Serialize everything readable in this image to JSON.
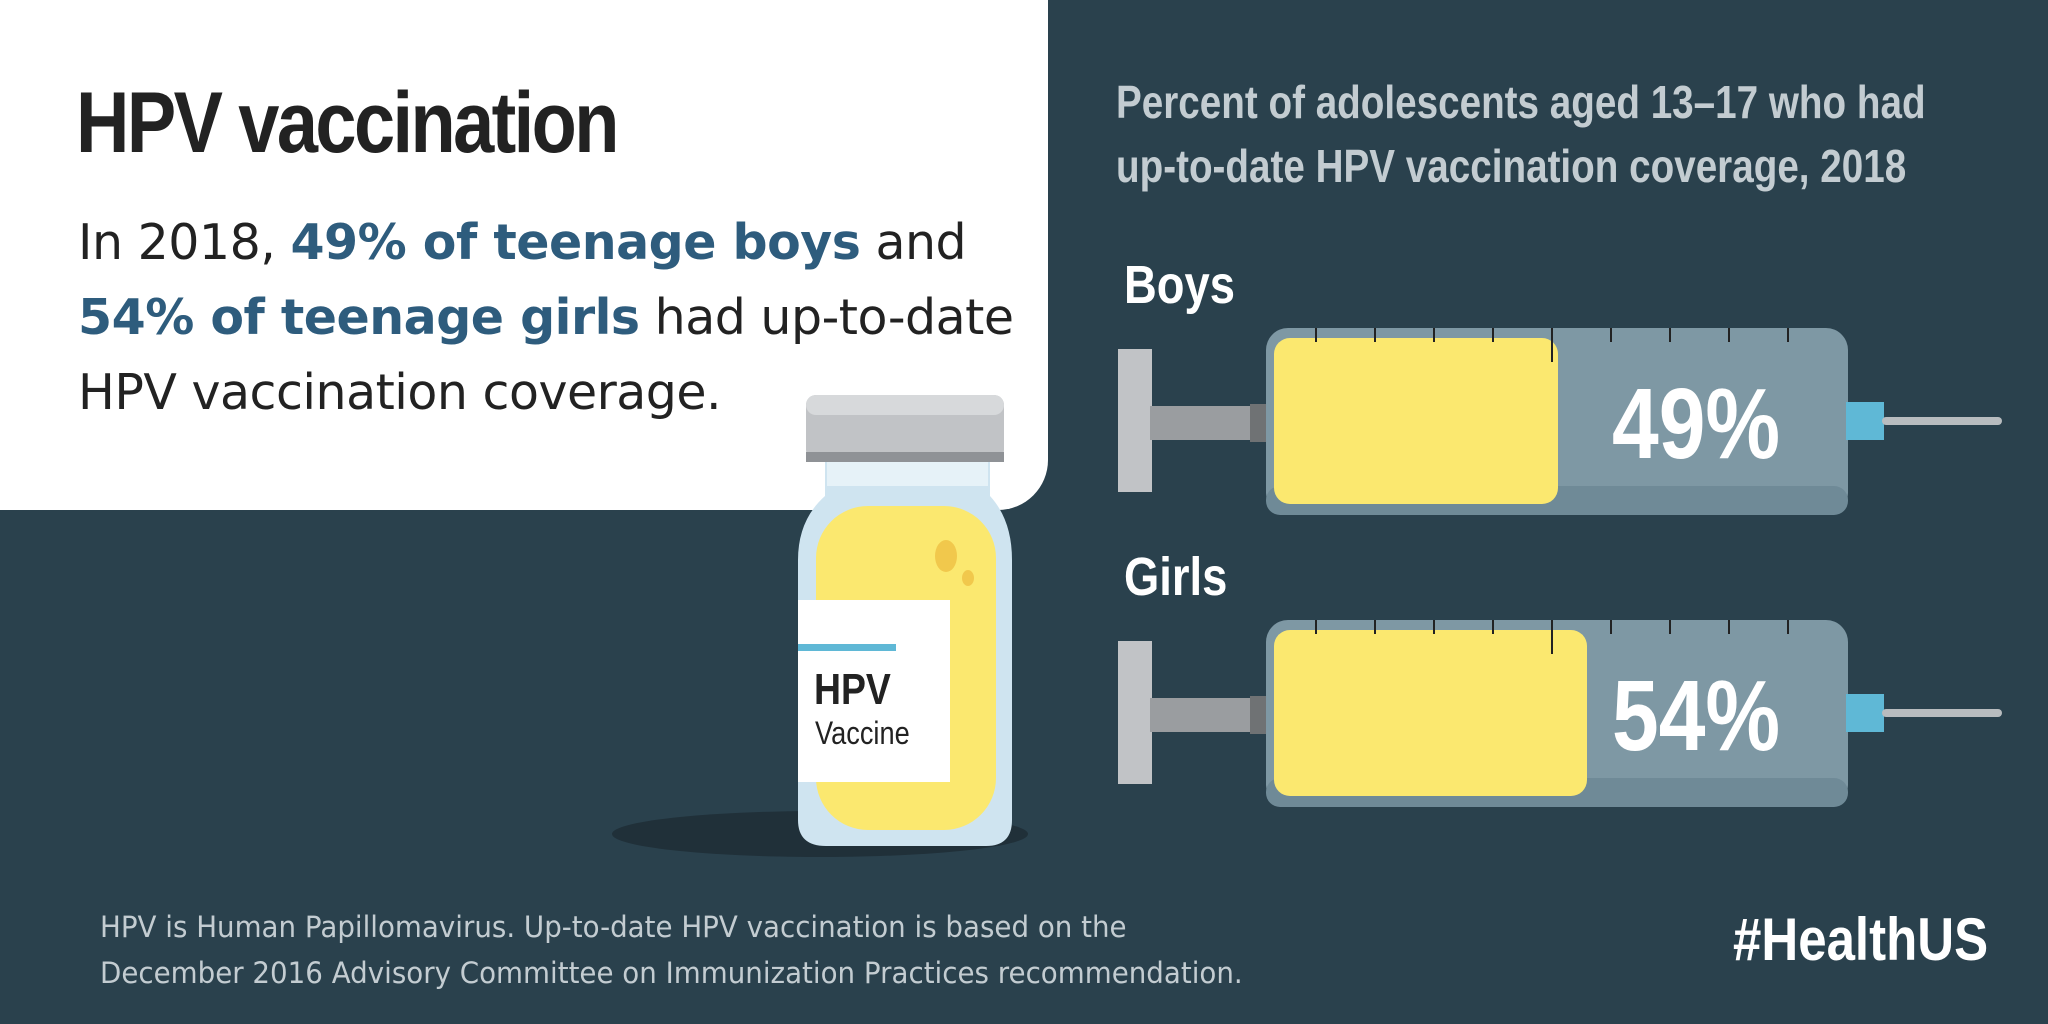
{
  "title": "HPV vaccination",
  "summary": {
    "part1": "In 2018, ",
    "highlight1": "49% of teenage boys",
    "part2": " and ",
    "highlight2": "54% of teenage girls",
    "part3": " had up-to-date HPV vaccination coverage."
  },
  "vial_label": {
    "line1": "HPV",
    "line2": "Vaccine"
  },
  "footnote": {
    "line1": "HPV is Human Papillomavirus. Up-to-date HPV vaccination is based on the",
    "line2": "December 2016 Advisory Committee on Immunization Practices recommendation."
  },
  "hashtag": "#HealthUS",
  "colors": {
    "background": "#2a414d",
    "highlight_text": "#2e5c7d",
    "fill": "#fbe86f",
    "syringe_body": "#7e98a4",
    "needle_hub": "#5fb8d6"
  },
  "chart_data": {
    "type": "bar",
    "title_lines": [
      "Percent of adolescents aged 13–17 who  had",
      "up-to-date HPV vaccination coverage, 2018"
    ],
    "categories": [
      "Boys",
      "Girls"
    ],
    "values": [
      49,
      54
    ],
    "value_labels": [
      "49%",
      "54%"
    ],
    "unit": "%",
    "ylim": [
      0,
      100
    ],
    "style": "syringe fill level"
  }
}
